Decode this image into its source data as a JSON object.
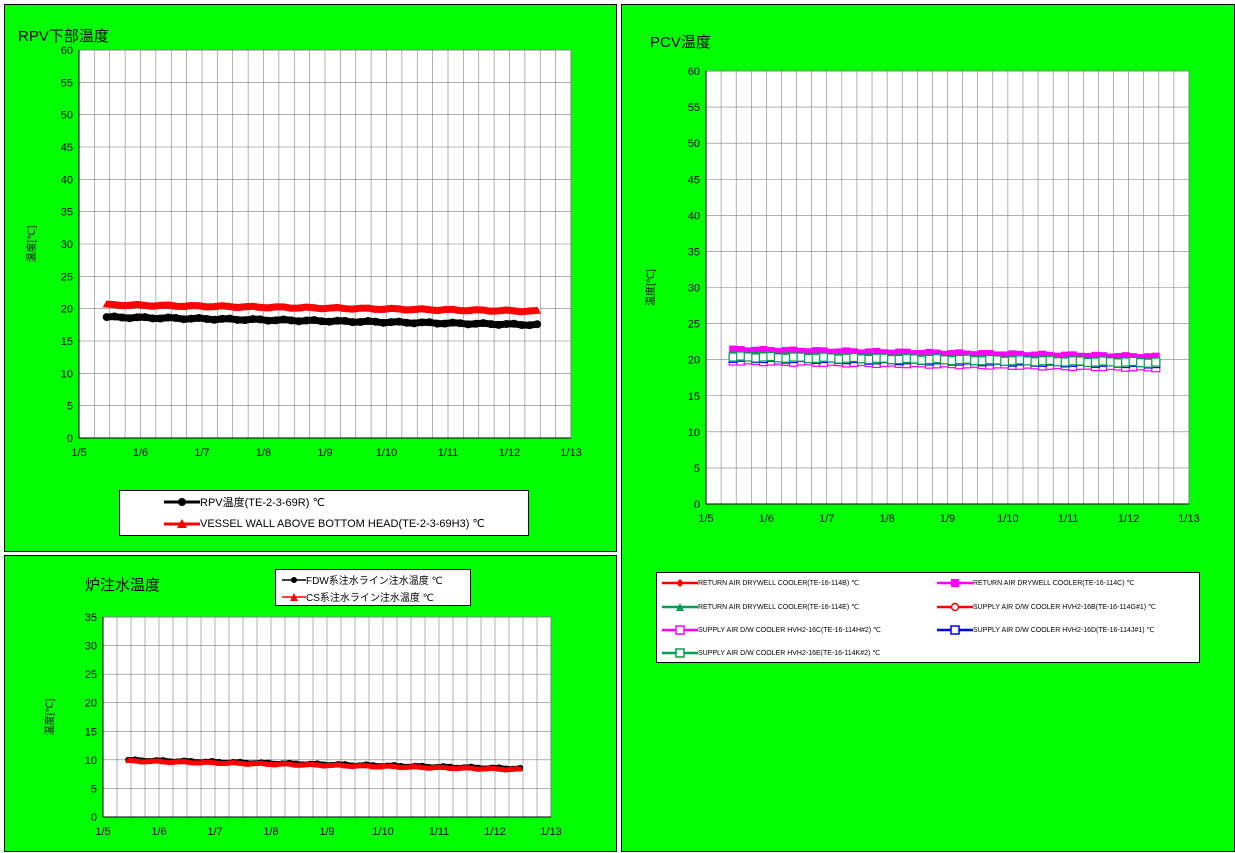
{
  "charts": [
    {
      "id": "rpv",
      "title": "RPV下部温度",
      "chart_data": {
        "type": "line",
        "title": "RPV下部温度",
        "ylabel": "温度[℃]",
        "xlabel": "",
        "x_ticks": [
          "1/5",
          "1/6",
          "1/7",
          "1/8",
          "1/9",
          "1/10",
          "1/11",
          "1/12",
          "1/13"
        ],
        "xlim": [
          "1/5",
          "1/13"
        ],
        "ylim": [
          0,
          60
        ],
        "y_ticks": [
          0,
          5,
          10,
          15,
          20,
          25,
          30,
          35,
          40,
          45,
          50,
          55,
          60
        ],
        "grid": true,
        "legend_position": "bottom",
        "series": [
          {
            "name": "RPV温度(TE-2-3-69R) ℃",
            "color": "#000000",
            "marker": "circle",
            "x_start": 5.45,
            "x_end": 12.45,
            "y_start": 18.7,
            "y_end": 17.5
          },
          {
            "name": "VESSEL WALL ABOVE BOTTOM HEAD(TE-2-3-69H3) ℃",
            "color": "#ff0000",
            "marker": "triangle",
            "x_start": 5.45,
            "x_end": 12.45,
            "y_start": 20.6,
            "y_end": 19.6
          }
        ]
      }
    },
    {
      "id": "injection",
      "title": "炉注水温度",
      "chart_data": {
        "type": "line",
        "title": "炉注水温度",
        "ylabel": "温度[℃]",
        "xlabel": "",
        "x_ticks": [
          "1/5",
          "1/6",
          "1/7",
          "1/8",
          "1/9",
          "1/10",
          "1/11",
          "1/12",
          "1/13"
        ],
        "xlim": [
          "1/5",
          "1/13"
        ],
        "ylim": [
          0,
          35
        ],
        "y_ticks": [
          0,
          5,
          10,
          15,
          20,
          25,
          30,
          35
        ],
        "grid": true,
        "legend_position": "top",
        "series": [
          {
            "name": "FDW系注水ライン注水温度 ℃",
            "color": "#000000",
            "marker": "circle",
            "x_start": 5.45,
            "x_end": 12.45,
            "y_start": 10.0,
            "y_end": 8.5
          },
          {
            "name": "CS系注水ライン注水温度 ℃",
            "color": "#ff0000",
            "marker": "triangle",
            "x_start": 5.45,
            "x_end": 12.45,
            "y_start": 9.8,
            "y_end": 8.3
          }
        ]
      }
    },
    {
      "id": "pcv",
      "title": "PCV温度",
      "chart_data": {
        "type": "line",
        "title": "PCV温度",
        "ylabel": "温度[℃]",
        "xlabel": "",
        "x_ticks": [
          "1/5",
          "1/6",
          "1/7",
          "1/8",
          "1/9",
          "1/10",
          "1/11",
          "1/12",
          "1/13"
        ],
        "xlim": [
          "1/5",
          "1/13"
        ],
        "ylim": [
          0,
          60
        ],
        "y_ticks": [
          0,
          5,
          10,
          15,
          20,
          25,
          30,
          35,
          40,
          45,
          50,
          55,
          60
        ],
        "grid": true,
        "legend_position": "bottom",
        "series": [
          {
            "name": "RETURN AIR DRYWELL COOLER(TE-16-114B) ℃",
            "color": "#ff0000",
            "marker": "diamond",
            "x_start": 5.45,
            "x_end": 12.45,
            "y_start": 21.0,
            "y_end": 20.0
          },
          {
            "name": "RETURN AIR DRYWELL COOLER(TE-16-114C) ℃",
            "color": "#ff00ff",
            "marker": "square",
            "x_start": 5.45,
            "x_end": 12.45,
            "y_start": 21.3,
            "y_end": 20.3
          },
          {
            "name": "RETURN AIR DRYWELL COOLER(TE-16-114E) ℃",
            "color": "#00a050",
            "marker": "triangle",
            "x_start": 5.45,
            "x_end": 12.45,
            "y_start": 20.7,
            "y_end": 19.7
          },
          {
            "name": "SUPPLY AIR D/W COOLER HVH2-16B(TE-16-114G#1) ℃",
            "color": "#ff0000",
            "marker": "open-circle",
            "x_start": 5.45,
            "x_end": 12.45,
            "y_start": 20.2,
            "y_end": 19.4
          },
          {
            "name": "SUPPLY AIR D/W COOLER HVH2-16C(TE-16-114H#2) ℃",
            "color": "#ff00ff",
            "marker": "open-square",
            "x_start": 5.45,
            "x_end": 12.45,
            "y_start": 19.9,
            "y_end": 19.0
          },
          {
            "name": "SUPPLY AIR D/W COOLER HVH2-16D(TE-16-114J#1) ℃",
            "color": "#0000ff",
            "marker": "open-square",
            "x_start": 5.45,
            "x_end": 12.45,
            "y_start": 20.3,
            "y_end": 19.5
          },
          {
            "name": "SUPPLY AIR D/W COOLER HVH2-16E(TE-16-114K#2) ℃",
            "color": "#00a050",
            "marker": "open-square",
            "x_start": 5.45,
            "x_end": 12.45,
            "y_start": 20.4,
            "y_end": 19.6
          }
        ]
      }
    }
  ]
}
